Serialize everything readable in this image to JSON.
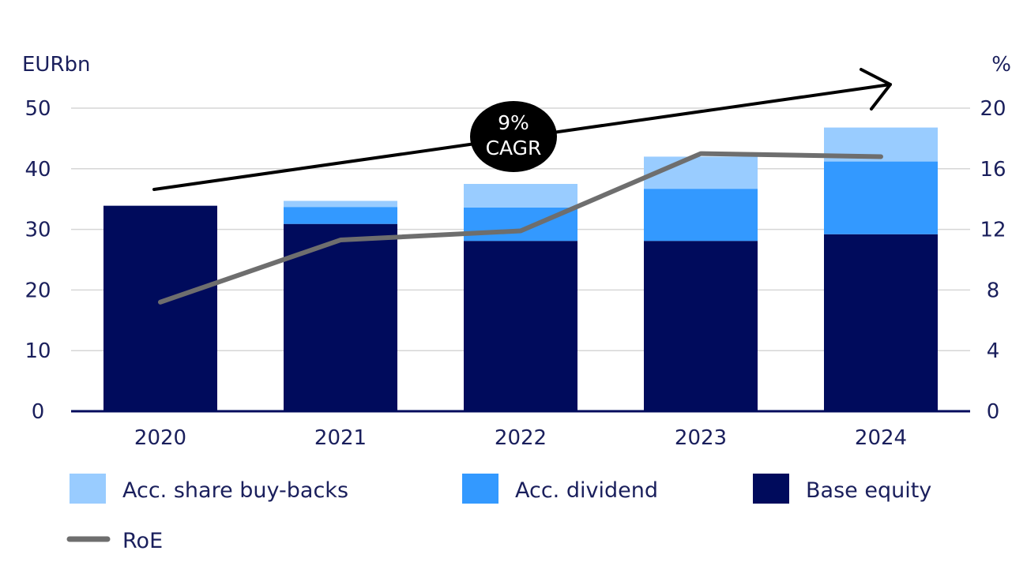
{
  "chart_data": {
    "type": "bar",
    "stacked": true,
    "categories": [
      "2020",
      "2021",
      "2022",
      "2023",
      "2024"
    ],
    "series": [
      {
        "name": "Base equity",
        "values": [
          33.9,
          30.9,
          28.1,
          28.1,
          29.2
        ],
        "color": "#000b5c"
      },
      {
        "name": "Acc. dividend",
        "values": [
          0,
          2.8,
          5.5,
          8.6,
          12.0
        ],
        "color": "#3399ff"
      },
      {
        "name": "Acc. share buy-backs",
        "values": [
          0,
          1.0,
          3.9,
          5.3,
          5.6
        ],
        "color": "#99ccff"
      }
    ],
    "line_series": {
      "name": "RoE",
      "values": [
        7.2,
        11.3,
        11.9,
        17.0,
        16.8
      ],
      "color": "#6e6e6e",
      "axis": "right"
    },
    "left_axis": {
      "label": "EURbn",
      "ylim": [
        0,
        50
      ],
      "ticks": [
        "0",
        "10",
        "20",
        "30",
        "40",
        "50"
      ],
      "tick_values": [
        0,
        10,
        20,
        30,
        40,
        50
      ]
    },
    "right_axis": {
      "label": "%",
      "ylim": [
        0,
        20
      ],
      "ticks": [
        "0",
        "4",
        "8",
        "12",
        "16",
        "20"
      ],
      "tick_values": [
        0,
        4,
        8,
        12,
        16,
        20
      ]
    },
    "annotation": {
      "line1": "9%",
      "line2": "CAGR"
    },
    "legend": {
      "placement": "bottom",
      "items": [
        {
          "label": "Acc. share buy-backs",
          "kind": "swatch",
          "color": "#99ccff"
        },
        {
          "label": "Acc. dividend",
          "kind": "swatch",
          "color": "#3399ff"
        },
        {
          "label": "Base equity",
          "kind": "swatch",
          "color": "#000b5c"
        },
        {
          "label": "RoE",
          "kind": "line",
          "color": "#6e6e6e"
        }
      ]
    },
    "grid": true,
    "title": ""
  }
}
